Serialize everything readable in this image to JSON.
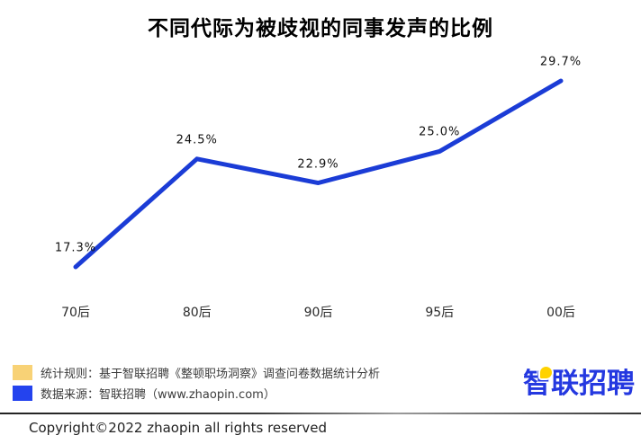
{
  "title": "不同代际为被歧视的同事发声的比例",
  "chart_data": {
    "type": "line",
    "title": "不同代际为被歧视的同事发声的比例",
    "categories": [
      "70后",
      "80后",
      "90后",
      "95后",
      "00后"
    ],
    "values": [
      17.3,
      24.5,
      22.9,
      25.0,
      29.7
    ],
    "data_labels": [
      "17.3%",
      "24.5%",
      "22.9%",
      "25.0%",
      "29.7%"
    ],
    "xlabel": "",
    "ylabel": "",
    "ylim": [
      15,
      32
    ],
    "grid": false,
    "legend_position": "none",
    "line_color": "#1b3cd6"
  },
  "legend": {
    "items": [
      {
        "swatch_color": "#f8d276",
        "label": "统计规则：基于智联招聘《整顿职场洞察》调查问卷数据统计分析"
      },
      {
        "swatch_color": "#2443ee",
        "label": "数据来源：智联招聘（www.zhaopin.com）"
      }
    ]
  },
  "brand": {
    "logo_text": "智联招聘",
    "logo_color": "#2438e0",
    "logo_accent_color": "#ffd200"
  },
  "footer": {
    "copyright": "Copyright©2022 zhaopin all rights reserved"
  }
}
